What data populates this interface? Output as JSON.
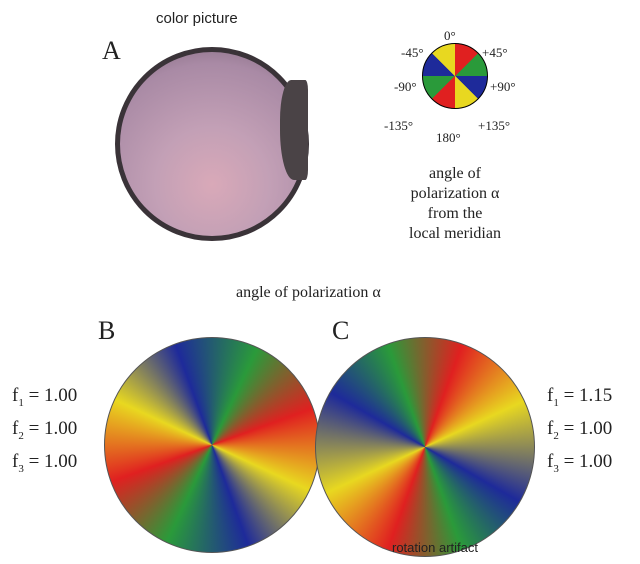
{
  "panel_a": {
    "title": "color picture",
    "letter": "A"
  },
  "legend": {
    "labels": {
      "top": "0°",
      "top_left": "-45°",
      "top_right": "+45°",
      "left": "-90°",
      "right": "+90°",
      "bottom_left": "-135°",
      "bottom": "180°",
      "bottom_right": "+135°"
    },
    "caption": [
      "angle of",
      "polarization α",
      "from the",
      "local meridian"
    ]
  },
  "bottom_title": "angle of polarization α",
  "panel_b": {
    "letter": "B",
    "factors": [
      {
        "symbol": "f",
        "index": "1",
        "value": "= 1.00"
      },
      {
        "symbol": "f",
        "index": "2",
        "value": "= 1.00"
      },
      {
        "symbol": "f",
        "index": "3",
        "value": "= 1.00"
      }
    ]
  },
  "panel_c": {
    "letter": "C",
    "factors": [
      {
        "symbol": "f",
        "index": "1",
        "value": "= 1.15"
      },
      {
        "symbol": "f",
        "index": "2",
        "value": "= 1.00"
      },
      {
        "symbol": "f",
        "index": "3",
        "value": "= 1.00"
      }
    ],
    "note": "rotation artifact"
  }
}
